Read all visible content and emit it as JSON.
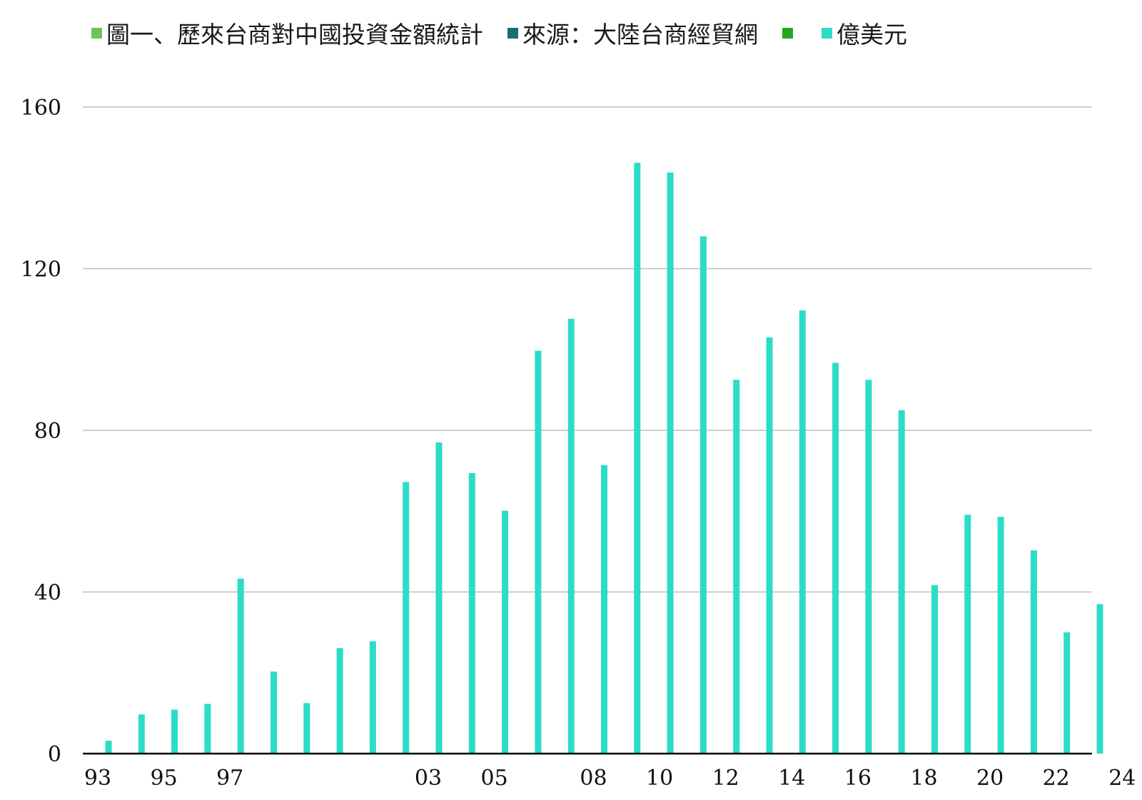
{
  "colors": {
    "series_1": "#6fc25a",
    "series_2": "#1a6e6e",
    "series_3": "#22a722",
    "series_4": "#2cdcc8",
    "grid": "#bdbdbd",
    "axis": "#000000"
  },
  "chart_data": {
    "type": "bar",
    "title": "",
    "xlabel": "",
    "ylabel": "",
    "ylim": [
      0,
      160
    ],
    "yticks": [
      0,
      40,
      80,
      120,
      160
    ],
    "grid": true,
    "legend_position": "top",
    "legend": [
      {
        "label": "圖一、歷來台商對中國投資金額統計",
        "color": "#6fc25a"
      },
      {
        "label": "來源：大陸台商經貿網",
        "color": "#1a6e6e"
      },
      {
        "label": "",
        "color": "#22a722"
      },
      {
        "label": "億美元",
        "color": "#2cdcc8"
      }
    ],
    "categories": [
      "93",
      "94",
      "95",
      "96",
      "97",
      "98",
      "99",
      "00",
      "01",
      "02",
      "03",
      "04",
      "05",
      "06",
      "07",
      "08",
      "09",
      "10",
      "11",
      "12",
      "13",
      "14",
      "15",
      "16",
      "17",
      "18",
      "19",
      "20",
      "21",
      "22",
      "23",
      "24"
    ],
    "tick_labels": [
      "93",
      "",
      "95",
      "",
      "97",
      "",
      "",
      "",
      "",
      "",
      "03",
      "",
      "05",
      "",
      "",
      "08",
      "",
      "10",
      "",
      "12",
      "",
      "14",
      "",
      "16",
      "",
      "18",
      "",
      "20",
      "",
      "22",
      "",
      "24"
    ],
    "series": [
      {
        "name": "億美元",
        "values": [
          3.2,
          9.7,
          10.9,
          12.3,
          43.3,
          20.3,
          12.5,
          26.1,
          27.8,
          67.2,
          77.0,
          69.4,
          60.1,
          99.7,
          107.6,
          71.4,
          146.2,
          143.8,
          128.0,
          92.5,
          103.0,
          109.7,
          96.7,
          92.5,
          85.0,
          41.7,
          59.1,
          58.6,
          50.3,
          30.0,
          37.0,
          0
        ]
      }
    ]
  }
}
